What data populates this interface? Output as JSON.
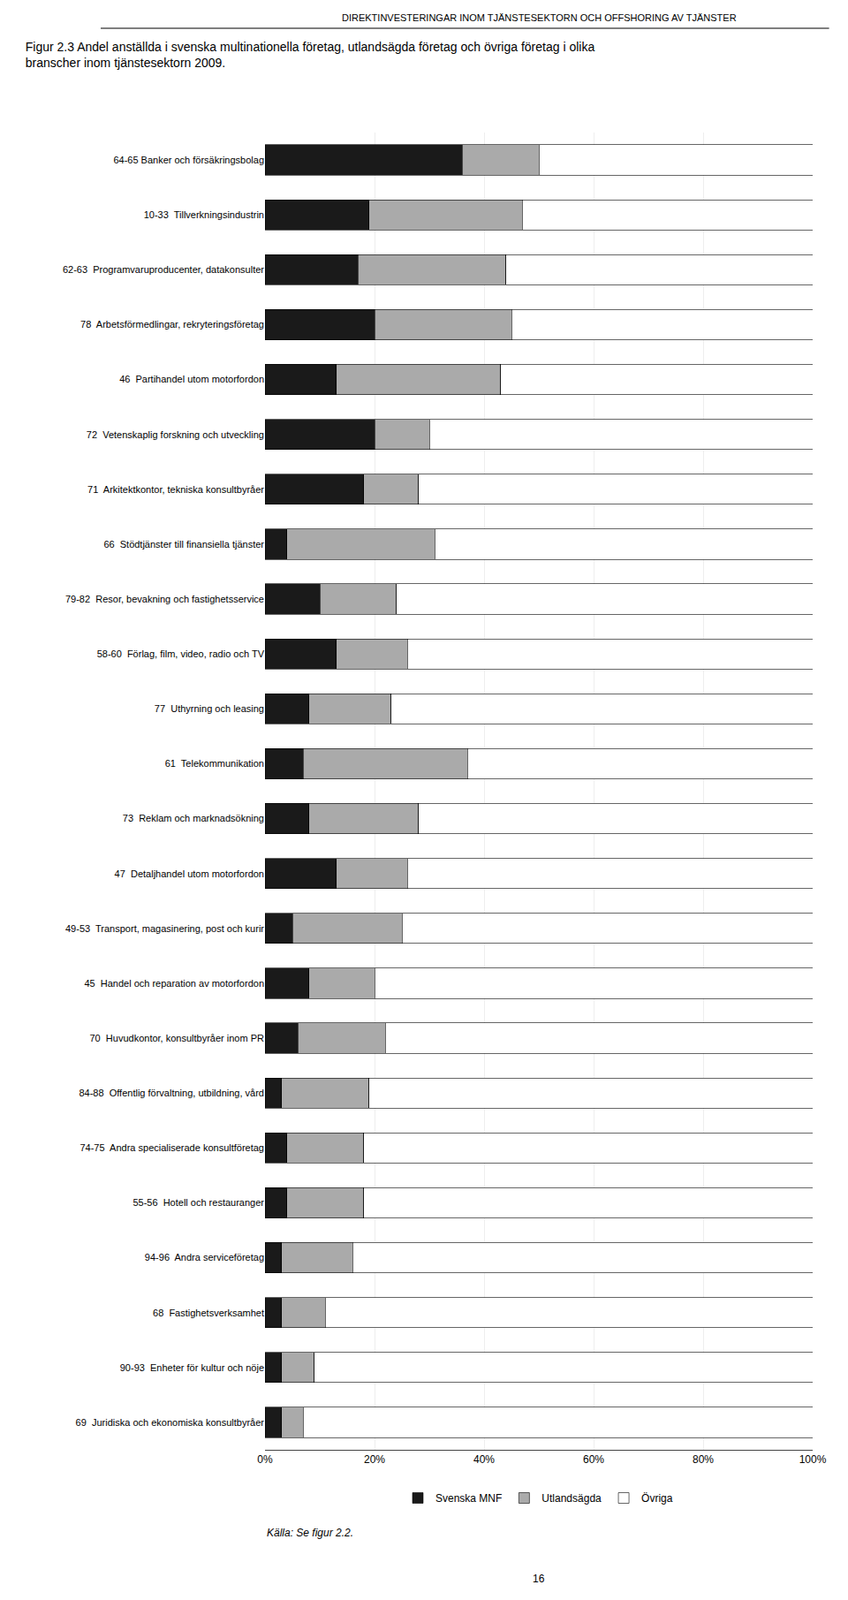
{
  "chart_data": {
    "type": "bar",
    "orientation": "horizontal",
    "stacked": true,
    "title": "Figur 2.3 Andel anställda i svenska multinationella företag, utlandsägda företag och övriga företag i olika\nbranscher inom tjänstesektorn 2009.",
    "annotations": [
      "DIREKTINVESTERINGAR INOM TJÄNSTESEKTORN OCH OFFSHORING AV TJÄNSTER",
      "Källa: Se figur 2.2.",
      "16"
    ],
    "categories": [
      "64-65 Banker och försäkringsbolag",
      "10-33  Tillverkningsindustrin",
      "62-63  Programvaruproducenter, datakonsulter",
      "78  Arbetsförmedlingar, rekryteringsföretag",
      "46  Partihandel utom motorfordon",
      "72  Vetenskaplig forskning och utveckling",
      "71  Arkitektkontor, tekniska konsultbyråer",
      "66  Stödtjänster till finansiella tjänster",
      "79-82  Resor, bevakning och fastighetsservice",
      "58-60  Förlag, film, video, radio och TV",
      "77  Uthyrning och leasing",
      "61  Telekommunikation",
      "73  Reklam och marknadsökning",
      "47  Detaljhandel utom motorfordon",
      "49-53  Transport, magasinering, post och kurir",
      "45  Handel och reparation av motorfordon",
      "70  Huvudkontor, konsultbyråer inom PR",
      "84-88  Offentlig förvaltning, utbildning, vård",
      "74-75  Andra specialiserade konsultföretag",
      "55-56  Hotell och restauranger",
      "94-96  Andra serviceföretag",
      "68  Fastighetsverksamhet",
      "90-93  Enheter för kultur och nöje",
      "69  Juridiska och ekonomiska konsultbyråer"
    ],
    "series": [
      {
        "name": "Svenska MNF",
        "color": "#1a1a1a",
        "values": [
          36,
          19,
          17,
          20,
          13,
          20,
          18,
          4,
          10,
          13,
          8,
          7,
          8,
          13,
          5,
          8,
          6,
          3,
          4,
          4,
          3,
          3,
          3,
          3
        ]
      },
      {
        "name": "Utlandsägda",
        "color": "#aaaaaa",
        "values": [
          14,
          28,
          27,
          25,
          30,
          10,
          10,
          27,
          14,
          13,
          15,
          30,
          20,
          13,
          20,
          12,
          16,
          16,
          14,
          14,
          13,
          8,
          6,
          4
        ]
      },
      {
        "name": "Övriga",
        "color": "#ffffff",
        "values": [
          50,
          53,
          56,
          55,
          57,
          70,
          72,
          69,
          76,
          74,
          77,
          63,
          72,
          74,
          75,
          80,
          78,
          81,
          82,
          82,
          84,
          89,
          91,
          93
        ]
      }
    ],
    "xlim": [
      0,
      100
    ],
    "xticks": [
      {
        "value": 0,
        "label": "0%"
      },
      {
        "value": 20,
        "label": "20%"
      },
      {
        "value": 40,
        "label": "40%"
      },
      {
        "value": 60,
        "label": "60%"
      },
      {
        "value": 80,
        "label": "80%"
      },
      {
        "value": 100,
        "label": "100%"
      }
    ],
    "grid": true,
    "legend": "bottom"
  }
}
